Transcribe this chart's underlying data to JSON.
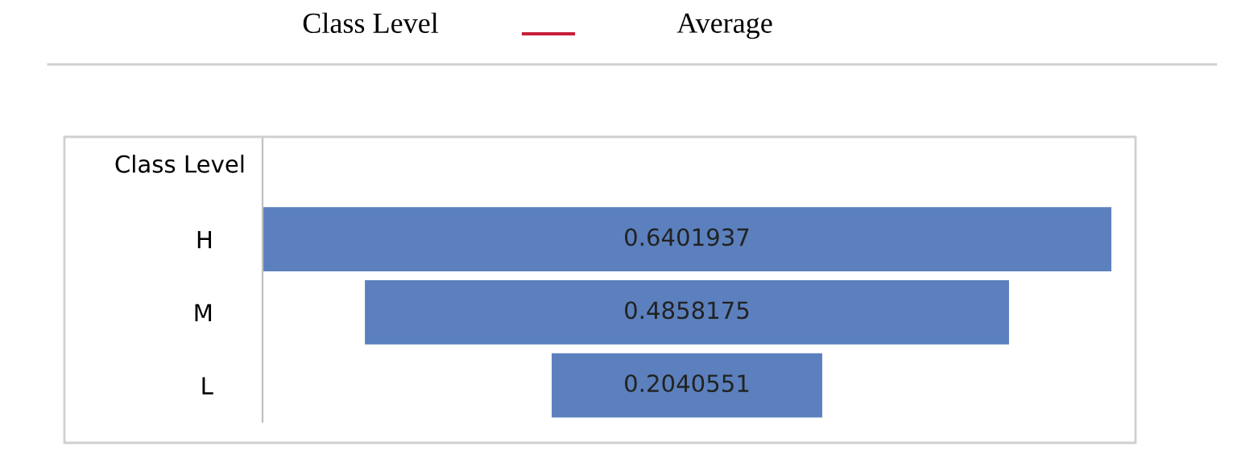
{
  "chart_data": {
    "type": "other",
    "ylabel": "Class Level",
    "annotations": [
      "Class Level",
      "Average"
    ],
    "categories": [
      "H",
      "M",
      "L"
    ],
    "values": [
      0.6401937,
      0.4858175,
      0.2040551
    ],
    "color": "#5b80bd",
    "data_labels": true
  }
}
